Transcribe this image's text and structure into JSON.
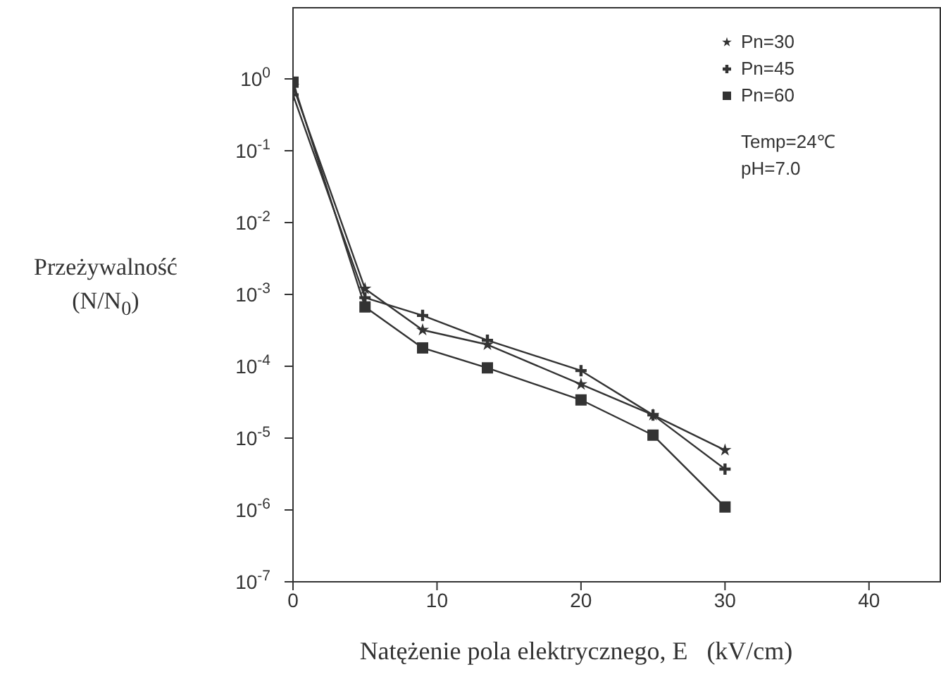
{
  "chart_data": {
    "type": "line",
    "xlabel": "Natężenie pola elektrycznego, E   (kV/cm)",
    "ylabel": "Przeżywalność\n(N/N$_{0}$)",
    "x": [
      0,
      5,
      9,
      13.5,
      20,
      25,
      30
    ],
    "series": [
      {
        "name": "Pn=30",
        "color": "#333333",
        "marker": "star",
        "values": [
          0.8,
          0.0012,
          0.00032,
          0.0002,
          5.6e-05,
          2.1e-05,
          6.8e-06
        ]
      },
      {
        "name": "Pn=45",
        "color": "#333333",
        "marker": "cross",
        "values": [
          0.6,
          0.0009,
          0.00051,
          0.00023,
          8.7e-05,
          2.1e-05,
          3.7e-06
        ]
      },
      {
        "name": "Pn=60",
        "color": "#333333",
        "marker": "square",
        "values": [
          0.9,
          0.00067,
          0.00018,
          9.5e-05,
          3.4e-05,
          1.1e-05,
          1.1e-06
        ]
      }
    ],
    "log": "y",
    "xlim": [
      0,
      45
    ],
    "xticks": [
      0,
      10,
      20,
      30,
      40
    ],
    "ylim": [
      1e-07,
      10
    ],
    "yticks": [
      {
        "value": 1e-07,
        "label": "10$^{-7}$"
      },
      {
        "value": 1e-06,
        "label": "10$^{-6}$"
      },
      {
        "value": 1e-05,
        "label": "10$^{-5}$"
      },
      {
        "value": 0.0001,
        "label": "10$^{-4}$"
      },
      {
        "value": 0.001,
        "label": "10$^{-3}$"
      },
      {
        "value": 0.01,
        "label": "10$^{-2}$"
      },
      {
        "value": 0.1,
        "label": "10$^{-1}$"
      },
      {
        "value": 1,
        "label": "10$^{0}$"
      }
    ],
    "legend": "top right",
    "line_style": "solid",
    "annotations": [
      "Temp=24℃",
      "pH=7.0"
    ]
  }
}
